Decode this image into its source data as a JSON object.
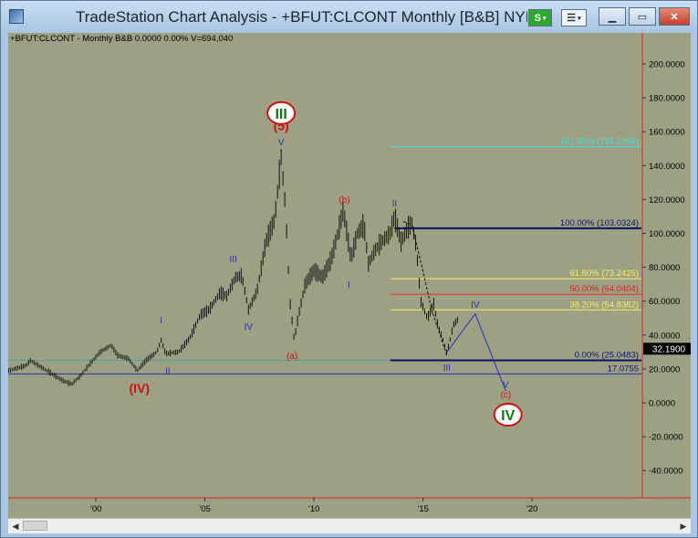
{
  "window": {
    "title": "TradeStation Chart Analysis - +BFUT:CLCONT Monthly [B&B] NYMX CRUDE"
  },
  "toolbar": {
    "s_label": "S"
  },
  "chart_header": {
    "symbol": "+BFUT:CLCONT - Monthly",
    "study": "B&B",
    "value1": "0.0000",
    "value2": "0.00%",
    "volume": "V=694,040"
  },
  "colors": {
    "background": "#9ea083",
    "bars": "#111111",
    "axis_line": "#d42222",
    "wave_blue": "#2233bb",
    "wave_red": "#cc1111",
    "wave_green": "#117711",
    "fib_cyan": "#44dddd",
    "fib_yellow": "#f4f066",
    "fib_red": "#e03030",
    "fib_navy": "#0b1566",
    "price_tag": "#000000"
  },
  "chart_data": {
    "type": "bar",
    "title": "",
    "xlabel": "",
    "ylabel": "",
    "ylim": [
      -55,
      215
    ],
    "x_ticks": [
      "'00",
      "'05",
      "'10",
      "'15",
      "'20"
    ],
    "x_tick_years": [
      2000,
      2005,
      2010,
      2015,
      2020
    ],
    "y_ticks": [
      "200.0000",
      "180.0000",
      "160.0000",
      "140.0000",
      "120.0000",
      "100.0000",
      "80.0000",
      "60.0000",
      "40.0000",
      "20.0000",
      "0.0000",
      "-20.0000",
      "-40.0000"
    ],
    "y_tick_values": [
      200,
      180,
      160,
      140,
      120,
      100,
      80,
      60,
      40,
      20,
      0,
      -20,
      -40
    ],
    "last_price": "32.1900",
    "last_price_value": 32.19,
    "price_path": [
      [
        1996.0,
        19
      ],
      [
        1996.8,
        22
      ],
      [
        1997.0,
        25
      ],
      [
        1997.5,
        21
      ],
      [
        1998.0,
        17
      ],
      [
        1998.5,
        13
      ],
      [
        1998.9,
        11
      ],
      [
        1999.3,
        16
      ],
      [
        1999.8,
        24
      ],
      [
        2000.2,
        30
      ],
      [
        2000.7,
        34
      ],
      [
        2001.0,
        28
      ],
      [
        2001.5,
        26
      ],
      [
        2001.9,
        19
      ],
      [
        2002.3,
        25
      ],
      [
        2002.8,
        30
      ],
      [
        2003.0,
        37
      ],
      [
        2003.2,
        29
      ],
      [
        2003.8,
        30
      ],
      [
        2004.3,
        38
      ],
      [
        2004.8,
        52
      ],
      [
        2005.2,
        55
      ],
      [
        2005.7,
        65
      ],
      [
        2006.0,
        63
      ],
      [
        2006.4,
        74
      ],
      [
        2006.7,
        75
      ],
      [
        2007.0,
        55
      ],
      [
        2007.4,
        66
      ],
      [
        2007.8,
        95
      ],
      [
        2008.2,
        108
      ],
      [
        2008.5,
        145
      ],
      [
        2008.7,
        115
      ],
      [
        2008.9,
        60
      ],
      [
        2009.1,
        37
      ],
      [
        2009.3,
        52
      ],
      [
        2009.6,
        70
      ],
      [
        2010.0,
        78
      ],
      [
        2010.4,
        74
      ],
      [
        2010.8,
        85
      ],
      [
        2011.1,
        100
      ],
      [
        2011.35,
        114
      ],
      [
        2011.7,
        85
      ],
      [
        2012.0,
        100
      ],
      [
        2012.3,
        105
      ],
      [
        2012.5,
        82
      ],
      [
        2012.8,
        90
      ],
      [
        2013.1,
        95
      ],
      [
        2013.5,
        100
      ],
      [
        2013.7,
        110
      ],
      [
        2014.0,
        95
      ],
      [
        2014.3,
        103
      ],
      [
        2014.5,
        106
      ],
      [
        2014.7,
        92
      ],
      [
        2014.9,
        60
      ],
      [
        2015.2,
        50
      ],
      [
        2015.5,
        58
      ],
      [
        2015.7,
        45
      ],
      [
        2015.9,
        38
      ],
      [
        2016.1,
        29
      ],
      [
        2016.4,
        46
      ],
      [
        2016.6,
        49
      ]
    ],
    "fib_levels": [
      {
        "label": "161.80% (151.2268)",
        "value": 151.2268,
        "x_from": 2013.5,
        "color_key": "fib_cyan"
      },
      {
        "label": "100.00% (103.0324)",
        "value": 103.0324,
        "x_from": 2013.7,
        "color_key": "fib_navy"
      },
      {
        "label": "61.80% (73.2425)",
        "value": 73.2425,
        "x_from": 2013.5,
        "color_key": "fib_yellow"
      },
      {
        "label": "50.00% (64.0404)",
        "value": 64.0404,
        "x_from": 2013.5,
        "color_key": "fib_red"
      },
      {
        "label": "38.20% (54.8382)",
        "value": 54.8382,
        "x_from": 2013.5,
        "color_key": "fib_yellow"
      },
      {
        "label": "0.00% (25.0483)",
        "value": 25.0483,
        "x_from": 2013.5,
        "color_key": "fib_navy"
      },
      {
        "label": "17.0755",
        "value": 17.0755,
        "x_from": 1996.0,
        "color_key": "wave_blue"
      }
    ],
    "teal_line": {
      "value": 25.0483,
      "x_from": 1996.0,
      "x_to": 2013.5
    },
    "projection_path": [
      [
        2016.1,
        30
      ],
      [
        2017.4,
        52.5
      ],
      [
        2018.8,
        7
      ]
    ],
    "dashed_path": [
      [
        2014.1,
        107
      ],
      [
        2014.5,
        105
      ],
      [
        2015.0,
        78
      ],
      [
        2015.4,
        55
      ],
      [
        2016.1,
        28
      ]
    ],
    "wave_labels": [
      {
        "text": "I",
        "x": 2003.0,
        "y": 47,
        "color_key": "wave_blue"
      },
      {
        "text": "II",
        "x": 2003.3,
        "y": 17,
        "color_key": "wave_blue"
      },
      {
        "text": "III",
        "x": 2006.3,
        "y": 83,
        "color_key": "wave_blue"
      },
      {
        "text": "IV",
        "x": 2007.0,
        "y": 43,
        "color_key": "wave_blue"
      },
      {
        "text": "V",
        "x": 2008.5,
        "y": 152,
        "color_key": "wave_blue"
      },
      {
        "text": "(5)",
        "x": 2008.5,
        "y": 161,
        "color_key": "wave_red"
      },
      {
        "text": "(a)",
        "x": 2009.0,
        "y": 26,
        "color_key": "wave_red"
      },
      {
        "text": "(b)",
        "x": 2011.4,
        "y": 118,
        "color_key": "wave_red"
      },
      {
        "text": "I",
        "x": 2011.6,
        "y": 68,
        "color_key": "wave_blue"
      },
      {
        "text": "II",
        "x": 2013.7,
        "y": 116,
        "color_key": "wave_blue"
      },
      {
        "text": "IV",
        "x": 2017.4,
        "y": 56,
        "color_key": "wave_blue"
      },
      {
        "text": "III",
        "x": 2016.1,
        "y": 19,
        "color_key": "wave_blue"
      },
      {
        "text": "V",
        "x": 2018.8,
        "y": 9,
        "color_key": "wave_blue"
      },
      {
        "text": "(c)",
        "x": 2018.8,
        "y": 3,
        "color_key": "wave_red"
      },
      {
        "text": "(IV)",
        "x": 2002.0,
        "y": 6,
        "color_key": "wave_red"
      }
    ],
    "circle_labels": [
      {
        "text": "III",
        "x": 2008.5,
        "y": 171,
        "color_key": "wave_green"
      },
      {
        "text": "IV",
        "x": 2018.9,
        "y": -7,
        "color_key": "wave_green"
      }
    ]
  }
}
